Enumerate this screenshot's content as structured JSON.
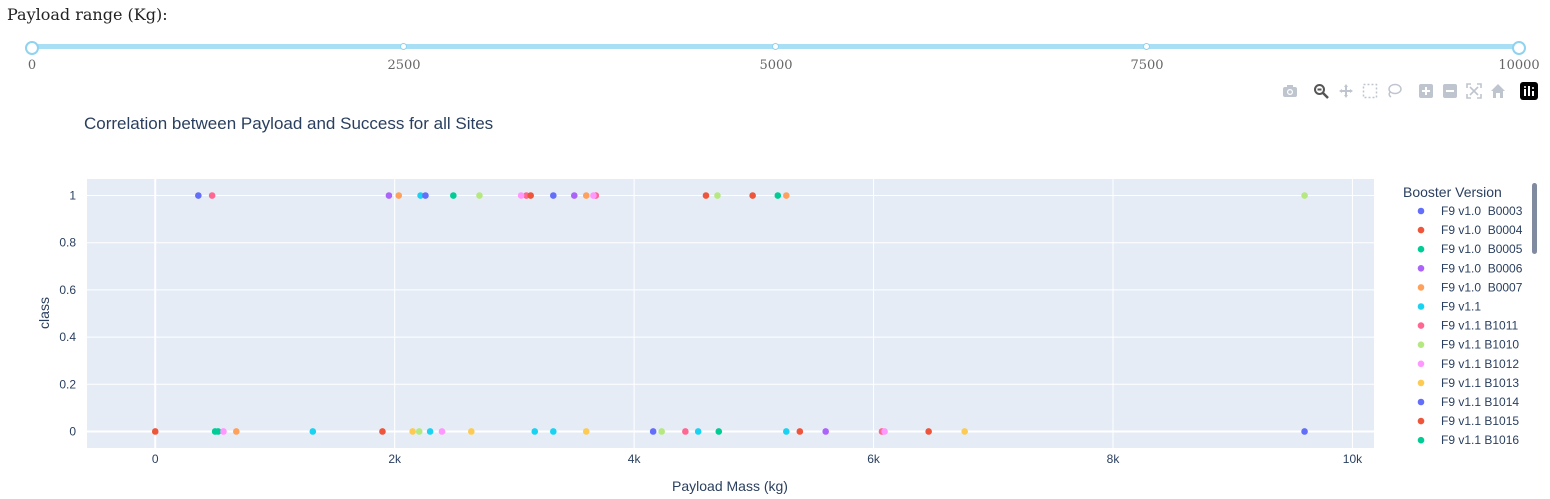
{
  "slider": {
    "label": "Payload range (Kg):",
    "min": 0,
    "max": 10000,
    "value": [
      0,
      10000
    ],
    "marks": [
      "0",
      "2500",
      "5000",
      "7500",
      "10000"
    ]
  },
  "modebar": [
    "camera-icon",
    "zoom-icon",
    "pan-icon",
    "box-select-icon",
    "lasso-icon",
    "zoom-in-icon",
    "zoom-out-icon",
    "autoscale-icon",
    "home-icon",
    "plotly-logo-icon"
  ],
  "chart_data": {
    "type": "scatter",
    "title": "Correlation between Payload and Success for all Sites",
    "xlabel": "Payload Mass (kg)",
    "ylabel": "class",
    "xlim": [
      -570,
      10180
    ],
    "ylim": [
      -0.07,
      1.07
    ],
    "xticks": [
      0,
      2000,
      4000,
      6000,
      8000,
      10000
    ],
    "xtick_labels": [
      "0",
      "2k",
      "4k",
      "6k",
      "8k",
      "10k"
    ],
    "yticks": [
      0,
      0.2,
      0.4,
      0.6,
      0.8,
      1
    ],
    "ytick_labels": [
      "0",
      "0.2",
      "0.4",
      "0.6",
      "0.8",
      "1"
    ],
    "grid": true,
    "legend_title": "Booster Version",
    "legend_position": "right",
    "series": [
      {
        "name": "F9 v1.0  B0003",
        "color": "#636efa",
        "points": [
          [
            360,
            1
          ]
        ]
      },
      {
        "name": "F9 v1.0  B0004",
        "color": "#ef553b",
        "points": [
          [
            0,
            0
          ]
        ]
      },
      {
        "name": "F9 v1.0  B0005",
        "color": "#00cc96",
        "points": [
          [
            525,
            0
          ]
        ]
      },
      {
        "name": "F9 v1.0  B0006",
        "color": "#ab63fa",
        "points": [
          [
            1952,
            1
          ],
          [
            3500,
            1
          ],
          [
            5600,
            0
          ]
        ]
      },
      {
        "name": "F9 v1.0  B0007",
        "color": "#ffa15a",
        "points": [
          [
            677,
            0
          ],
          [
            2034,
            1
          ],
          [
            3600,
            1
          ],
          [
            5271,
            1
          ]
        ]
      },
      {
        "name": "F9 v1.1",
        "color": "#19d3f3",
        "points": [
          [
            1316,
            0
          ],
          [
            2216,
            1
          ],
          [
            2296,
            0
          ],
          [
            3170,
            0
          ],
          [
            3325,
            0
          ],
          [
            4535,
            0
          ],
          [
            5271,
            0
          ]
        ]
      },
      {
        "name": "F9 v1.1 B1011",
        "color": "#ff6692",
        "points": [
          [
            475,
            1
          ],
          [
            3100,
            1
          ],
          [
            3680,
            1
          ],
          [
            4428,
            0
          ],
          [
            6070,
            0
          ]
        ]
      },
      {
        "name": "F9 v1.1 B1010",
        "color": "#b6e880",
        "points": [
          [
            2205,
            0
          ],
          [
            2708,
            1
          ],
          [
            4230,
            0
          ],
          [
            4696,
            1
          ],
          [
            9600,
            1
          ]
        ]
      },
      {
        "name": "F9 v1.1 B1012",
        "color": "#ff97ff",
        "points": [
          [
            570,
            0
          ],
          [
            2395,
            0
          ],
          [
            3056,
            1
          ],
          [
            3660,
            1
          ],
          [
            6092,
            0
          ]
        ]
      },
      {
        "name": "F9 v1.1 B1013",
        "color": "#fecb52",
        "points": [
          [
            2150,
            0
          ],
          [
            2640,
            0
          ],
          [
            3600,
            0
          ],
          [
            6761,
            0
          ]
        ]
      },
      {
        "name": "F9 v1.1 B1014",
        "color": "#636efa",
        "points": [
          [
            2257,
            1
          ],
          [
            3325,
            1
          ],
          [
            4159,
            0
          ],
          [
            9600,
            0
          ]
        ]
      },
      {
        "name": "F9 v1.1 B1015",
        "color": "#ef553b",
        "points": [
          [
            1898,
            0
          ],
          [
            3136,
            1
          ],
          [
            4600,
            1
          ],
          [
            4990,
            1
          ],
          [
            5384,
            0
          ],
          [
            6460,
            0
          ]
        ]
      },
      {
        "name": "F9 v1.1 B1016",
        "color": "#00cc96",
        "points": [
          [
            500,
            0
          ],
          [
            2490,
            1
          ],
          [
            4707,
            0
          ],
          [
            5200,
            1
          ]
        ]
      }
    ]
  }
}
